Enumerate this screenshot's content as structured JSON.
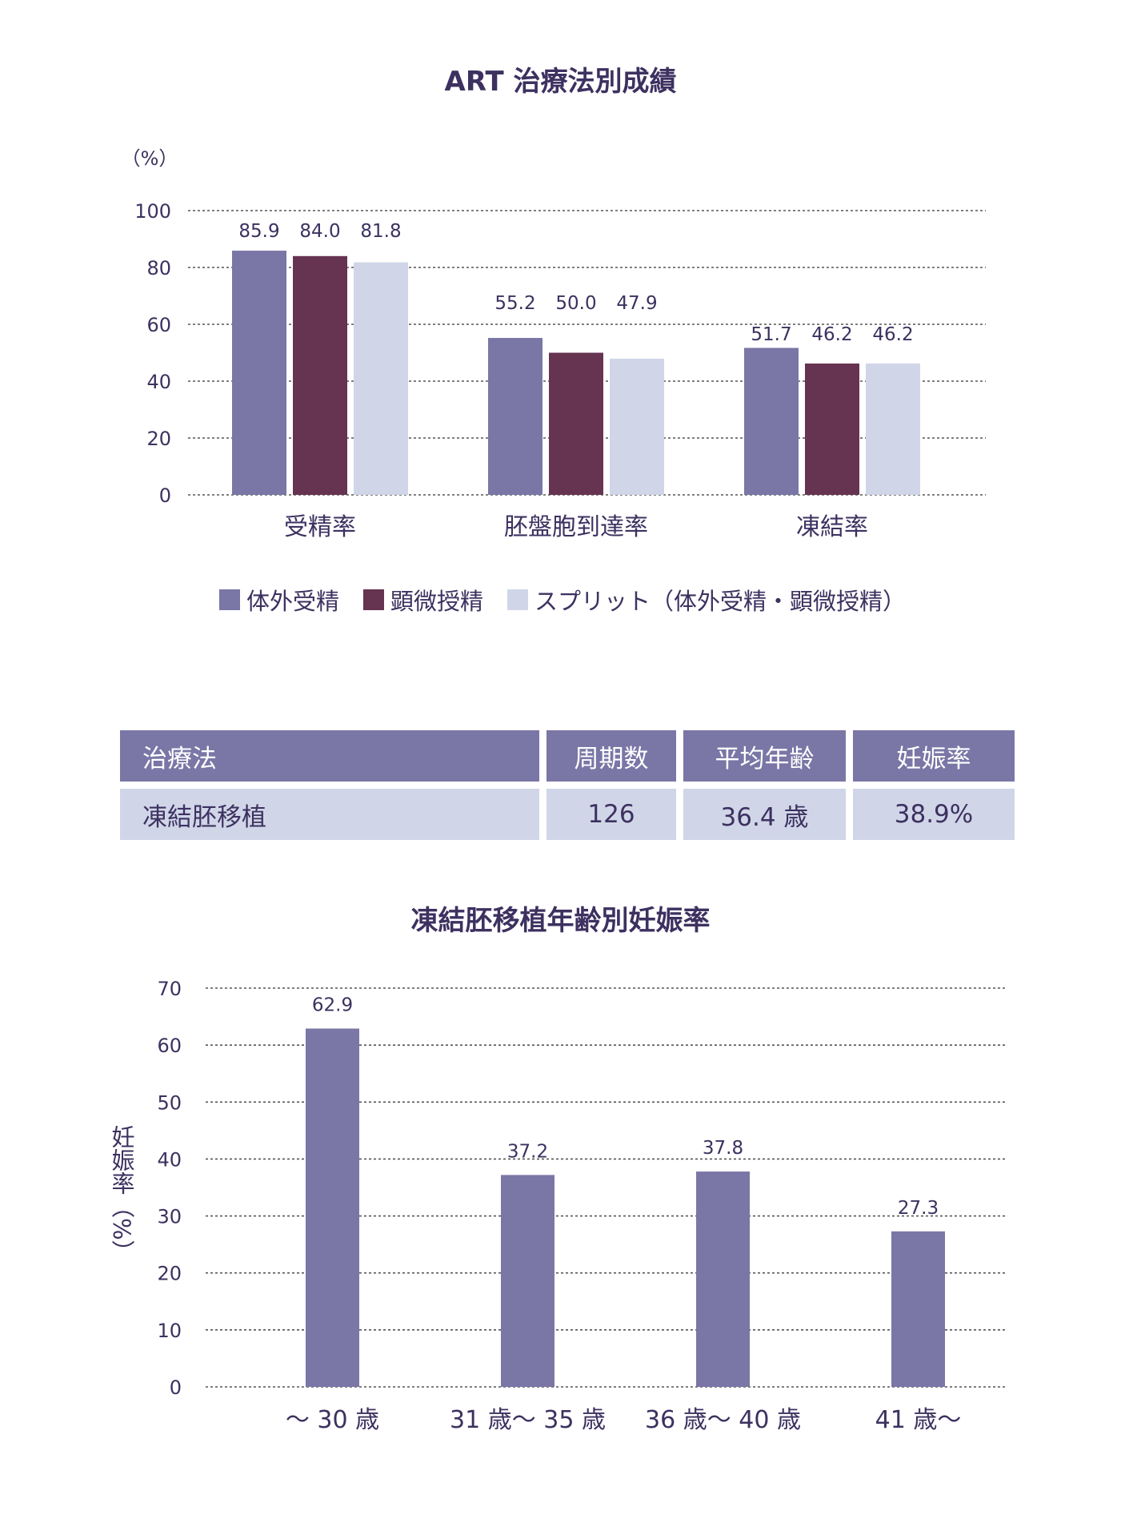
{
  "chart_data": [
    {
      "type": "bar",
      "title": "ART 治療法別成績",
      "ylabel": "（%）",
      "ylim": [
        0,
        100
      ],
      "yticks": [
        "0",
        "20",
        "40",
        "60",
        "80",
        "100"
      ],
      "grid": true,
      "legend_position": "bottom",
      "categories": [
        "受精率",
        "胚盤胞到達率",
        "凍結率"
      ],
      "series": [
        {
          "name": "体外受精",
          "color": "#7a76a6",
          "values": [
            85.9,
            55.2,
            51.7
          ],
          "labels": [
            "85.9",
            "55.2",
            "51.7"
          ]
        },
        {
          "name": "顕微授精",
          "color": "#663350",
          "values": [
            84.0,
            50.0,
            46.2
          ],
          "labels": [
            "84.0",
            "50.0",
            "46.2"
          ]
        },
        {
          "name": "スプリット（体外受精・顕微授精）",
          "color": "#d0d6e8",
          "values": [
            81.8,
            47.9,
            46.2
          ],
          "labels": [
            "81.8",
            "47.9",
            "46.2"
          ]
        }
      ]
    },
    {
      "type": "bar",
      "title": "凍結胚移植年齢別妊娠率",
      "ylabel": "妊娠率（%）",
      "ylim": [
        0,
        70
      ],
      "yticks": [
        "0",
        "10",
        "20",
        "30",
        "40",
        "50",
        "60",
        "70"
      ],
      "grid": true,
      "categories": [
        "～ 30 歳",
        "31 歳～ 35 歳",
        "36 歳～ 40 歳",
        "41 歳～"
      ],
      "series": [
        {
          "name": "妊娠率",
          "color": "#7a76a6",
          "values": [
            62.9,
            37.2,
            37.8,
            27.3
          ],
          "labels": [
            "62.9",
            "37.2",
            "37.8",
            "27.3"
          ]
        }
      ]
    }
  ],
  "table": {
    "headers": [
      "治療法",
      "周期数",
      "平均年齢",
      "妊娠率"
    ],
    "rows": [
      [
        "凍結胚移植",
        "126",
        "36.4 歳",
        "38.9%"
      ]
    ]
  }
}
